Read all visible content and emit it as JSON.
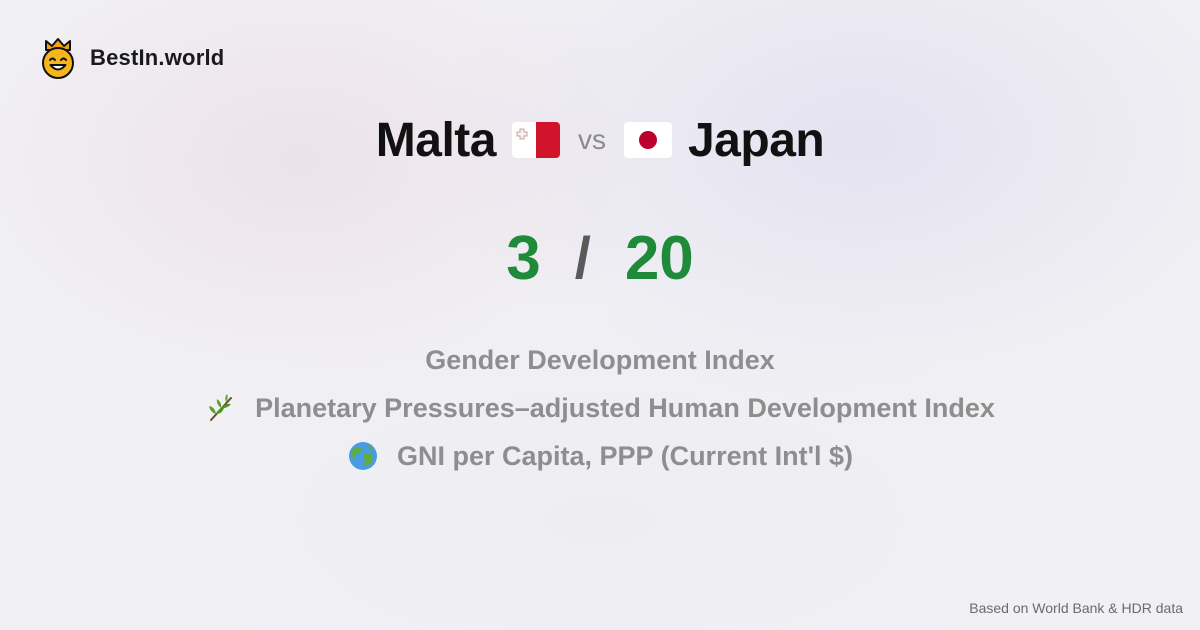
{
  "brand": {
    "name": "BestIn.world",
    "logo_icon": "crown-smiley-icon"
  },
  "comparison": {
    "left_country": "Malta",
    "left_flag_icon": "malta-flag-icon",
    "vs_label": "vs",
    "right_country": "Japan",
    "right_flag_icon": "japan-flag-icon"
  },
  "score": {
    "left": "3",
    "separator": "/",
    "right": "20",
    "color": "#1f8a3a"
  },
  "metrics": [
    {
      "label": "Gender Development Index",
      "icon": ""
    },
    {
      "label": "Planetary Pressures–adjusted Human Development Index",
      "icon": "herb-icon"
    },
    {
      "label": "GNI per Capita, PPP (Current Int'l $)",
      "icon": "globe-icon"
    }
  ],
  "footer": {
    "source": "Based on World Bank & HDR data"
  }
}
